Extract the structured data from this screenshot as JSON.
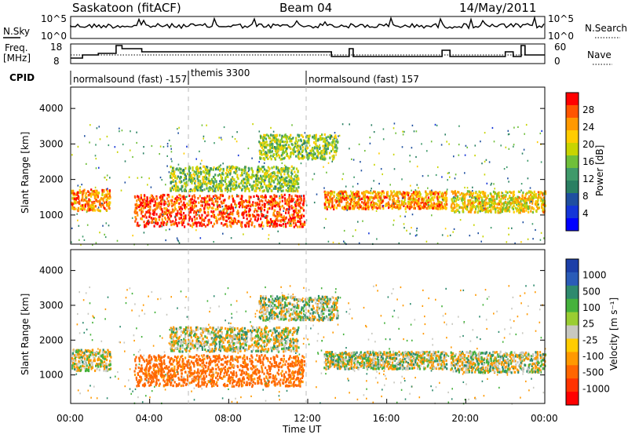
{
  "header": {
    "station": "Saskatoon (fitACF)",
    "beam": "Beam 04",
    "date": "14/May/2011"
  },
  "panels": {
    "nsky": {
      "label": "N.Sky",
      "left_ticks": [
        "10^5",
        "10^0"
      ],
      "right_ticks": [
        "10^5",
        "10^0"
      ],
      "right_label": "N.Search"
    },
    "freq": {
      "label_line1": "Freq.",
      "label_line2": "[MHz]",
      "left_ticks": [
        "18",
        "8"
      ],
      "right_ticks": [
        "60",
        "0"
      ],
      "right_label": "Nave"
    },
    "cpid": {
      "label": "CPID",
      "segments": [
        "normalsound (fast) -157",
        "themis 3300",
        "normalsound (fast) 157"
      ]
    }
  },
  "power_colorbar": {
    "title": "Power [dB]",
    "ticks": [
      "28",
      "24",
      "20",
      "16",
      "12",
      "8",
      "4"
    ],
    "colors": [
      "#ff0000",
      "#ff5500",
      "#ff9900",
      "#ffcc00",
      "#c8d400",
      "#6fbf3a",
      "#3f9a6a",
      "#2a7f62",
      "#1f4fa0",
      "#1435d8",
      "#0000ff"
    ]
  },
  "velocity_colorbar": {
    "title": "Velocity [m s⁻¹]",
    "ticks": [
      "1000",
      "500",
      "100",
      "25",
      "-25",
      "-100",
      "-500",
      "-1000"
    ],
    "colors": [
      "#1c3fa8",
      "#2a5cb8",
      "#2e8a6e",
      "#45b23c",
      "#9acd32",
      "#c8c8c0",
      "#ffcc00",
      "#ff9900",
      "#ff6600",
      "#ff3300",
      "#ff0000"
    ]
  },
  "chart_data": {
    "type": "heatmap",
    "xlabel": "Time UT",
    "x_ticks": [
      "00:00",
      "04:00",
      "08:00",
      "12:00",
      "16:00",
      "20:00",
      "00:00"
    ],
    "ylabel": "Slant Range [km]",
    "y_ticks": [
      1000,
      2000,
      3000,
      4000
    ],
    "ylim": [
      180,
      4600
    ],
    "xlim_hours": [
      0,
      24
    ],
    "panels": [
      "Power [dB]",
      "Velocity [m s⁻¹]"
    ],
    "scatter_bands": [
      {
        "t0": 0.0,
        "t1": 2.0,
        "r0": 1150,
        "r1": 1750,
        "power": 24,
        "velocity": -25
      },
      {
        "t0": 3.2,
        "t1": 11.8,
        "r0": 700,
        "r1": 1600,
        "power": 28,
        "velocity": -300
      },
      {
        "t0": 12.8,
        "t1": 19.0,
        "r0": 1200,
        "r1": 1700,
        "power": 24,
        "velocity": 0
      },
      {
        "t0": 19.2,
        "t1": 24.0,
        "r0": 1100,
        "r1": 1700,
        "power": 20,
        "velocity": 0
      },
      {
        "t0": 5.0,
        "t1": 11.5,
        "r0": 1700,
        "r1": 2400,
        "power": 16,
        "velocity": 0
      },
      {
        "t0": 9.5,
        "t1": 13.5,
        "r0": 2600,
        "r1": 3300,
        "power": 16,
        "velocity": 25
      }
    ]
  }
}
